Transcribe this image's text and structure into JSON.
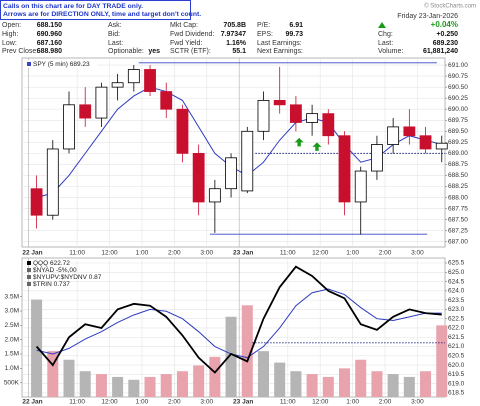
{
  "note": [
    "Calls on this chart are for DAY TRADE only.",
    "Arrows are for DIRECTION ONLY, time and target don't count."
  ],
  "copyright": "© StockCharts.com",
  "quote": [
    [
      {
        "label": "Open:",
        "value": "688.150"
      },
      {
        "label": "High:",
        "value": "690.960"
      },
      {
        "label": "Low:",
        "value": "687.160"
      },
      {
        "label": "Prev Close:",
        "value": "688.980"
      }
    ],
    [
      {
        "label": "Ask:"
      },
      {
        "label": "Bid:"
      },
      {
        "label": "Last:"
      },
      {
        "label": "Optionable:",
        "value": "yes"
      }
    ],
    [
      {
        "label": "Mkt Cap:",
        "value": "705.8B"
      },
      {
        "label": "Fwd Dividend:",
        "value": "7.97347"
      },
      {
        "label": "Fwd Yield:",
        "value": "1.16%"
      },
      {
        "label": "SCTR (ETF):",
        "value": "55.1"
      }
    ],
    [
      {
        "label": "P/E:",
        "value": "6.91"
      },
      {
        "label": "EPS:",
        "value": "99.73"
      },
      {
        "label": "Last Earnings:"
      },
      {
        "label": "Next Earnings:"
      }
    ]
  ],
  "summary": {
    "date": "Friday  23-Jan-2026",
    "change_pct": "+0.04%",
    "rows": [
      {
        "label": "Chg:",
        "value": "+0.250"
      },
      {
        "label": "Last:",
        "value": "689.230"
      },
      {
        "label": "Volume:",
        "value": "61,881,240"
      }
    ]
  },
  "chart_data": [
    {
      "type": "candlestick",
      "legend": "SPY (5 min) 689.23",
      "x": [
        0.25,
        0.75,
        1.25,
        1.75,
        2.25,
        2.75,
        3.25,
        3.75,
        4.25,
        4.75,
        5.25,
        5.75,
        6.25,
        6.75,
        7.25,
        7.75,
        8.25,
        8.75,
        9.25,
        9.75,
        10.25,
        10.75,
        11.25,
        11.75,
        12.25,
        12.75
      ],
      "open": [
        688.2,
        687.6,
        689.1,
        690.1,
        689.8,
        690.5,
        690.6,
        690.9,
        690.4,
        690.0,
        689.0,
        687.9,
        688.2,
        688.15,
        689.5,
        690.2,
        690.1,
        689.7,
        689.9,
        689.4,
        687.9,
        688.6,
        689.2,
        689.6,
        689.4,
        689.1
      ],
      "high": [
        688.5,
        689.3,
        690.4,
        690.5,
        690.6,
        690.8,
        691.0,
        691.0,
        690.6,
        690.1,
        689.2,
        688.4,
        689.0,
        689.6,
        690.4,
        690.96,
        690.3,
        690.1,
        690.0,
        689.5,
        688.7,
        689.4,
        689.8,
        690.0,
        689.6,
        689.4
      ],
      "low": [
        687.3,
        687.5,
        689.0,
        689.6,
        689.6,
        690.2,
        690.4,
        690.3,
        689.8,
        688.8,
        687.6,
        687.2,
        688.0,
        688.1,
        689.3,
        689.9,
        689.5,
        689.4,
        689.2,
        687.6,
        687.16,
        688.4,
        689.0,
        689.2,
        689.0,
        688.8
      ],
      "close": [
        687.6,
        689.1,
        690.1,
        689.8,
        690.5,
        690.6,
        690.9,
        690.4,
        690.0,
        689.0,
        687.9,
        688.2,
        688.9,
        689.5,
        690.2,
        690.1,
        689.7,
        689.9,
        689.4,
        687.9,
        688.6,
        689.2,
        689.6,
        689.4,
        689.1,
        689.23
      ],
      "colors": {
        "up": "#000000",
        "down": "#c8102e"
      },
      "ma": {
        "color": "#2e3bc0",
        "values": [
          688.0,
          688.1,
          688.5,
          689.0,
          689.5,
          690.0,
          690.3,
          690.5,
          690.4,
          690.2,
          689.6,
          689.0,
          688.7,
          688.5,
          688.8,
          689.3,
          689.7,
          689.8,
          689.7,
          689.2,
          688.8,
          688.9,
          689.2,
          689.4,
          689.3,
          689.2
        ]
      },
      "levels": [
        {
          "value": 691.05,
          "from": 3.4,
          "to": 12.6,
          "style": "solid",
          "color": "#3a44c8"
        },
        {
          "value": 687.17,
          "from": 5.6,
          "to": 12.3,
          "style": "solid",
          "color": "#3a44c8"
        },
        {
          "value": 689.0,
          "from": 7.0,
          "to": 12.85,
          "style": "dotted",
          "color": "#1a237e"
        }
      ],
      "arrows": {
        "color": "#1a9a1a",
        "x": [
          8.35,
          8.9
        ],
        "values": [
          689.35,
          689.25
        ]
      },
      "xlim": [
        -0.2,
        12.85
      ],
      "xticks": [
        {
          "value": 0,
          "label": "22 Jan"
        },
        {
          "value": 1.5,
          "label": "11:00"
        },
        {
          "value": 2.5,
          "label": "12:00"
        },
        {
          "value": 3.5,
          "label": "1:00"
        },
        {
          "value": 4.5,
          "label": "2:00"
        },
        {
          "value": 5.5,
          "label": "3:00"
        },
        {
          "value": 6.5,
          "label": "23 Jan"
        },
        {
          "value": 8,
          "label": "11:00"
        },
        {
          "value": 9,
          "label": "12:00"
        },
        {
          "value": 10,
          "label": "1:00"
        },
        {
          "value": 11,
          "label": "2:00"
        },
        {
          "value": 12,
          "label": "3:00"
        }
      ],
      "ylim": [
        686.88,
        691.16
      ],
      "yticks": [
        {
          "value": 691,
          "label": "691.00"
        },
        {
          "value": 690.75,
          "label": "690.75"
        },
        {
          "value": 690.5,
          "label": "690.50"
        },
        {
          "value": 690.25,
          "label": "690.25"
        },
        {
          "value": 690,
          "label": "690.00"
        },
        {
          "value": 689.75,
          "label": "689.75"
        },
        {
          "value": 689.5,
          "label": "689.50"
        },
        {
          "value": 689.25,
          "label": "689.25"
        },
        {
          "value": 689,
          "label": "689.00"
        },
        {
          "value": 688.75,
          "label": "688.75"
        },
        {
          "value": 688.5,
          "label": "688.50"
        },
        {
          "value": 688.25,
          "label": "688.25"
        },
        {
          "value": 688,
          "label": "688.00"
        },
        {
          "value": 687.75,
          "label": "687.75"
        },
        {
          "value": 687.5,
          "label": "687.50"
        },
        {
          "value": 687.25,
          "label": "687.25"
        },
        {
          "value": 687,
          "label": "687.00"
        }
      ],
      "grid": true
    },
    {
      "type": "line",
      "legend": [
        "$NYAD -5%,00",
        "$NYUPV:$NYDNV 0.87",
        "$TRIN 0.737"
      ],
      "x": [
        0.25,
        0.75,
        1.25,
        1.75,
        2.25,
        2.75,
        3.25,
        3.75,
        4.25,
        4.75,
        5.25,
        5.75,
        6.25,
        6.75,
        7.25,
        7.75,
        8.25,
        8.75,
        9.25,
        9.75,
        10.25,
        10.75,
        11.25,
        11.75,
        12.25,
        12.75
      ],
      "series": [
        {
          "name": "QQQ 622.72",
          "color": "#000000",
          "values": [
            621.0,
            620.0,
            621.5,
            622.2,
            622.0,
            623.0,
            623.3,
            623.2,
            622.6,
            621.6,
            620.4,
            619.6,
            620.6,
            620.2,
            622.5,
            624.2,
            625.3,
            624.8,
            624.0,
            623.6,
            622.2,
            621.9,
            622.6,
            623.0,
            622.8,
            622.72
          ]
        }
      ],
      "ma": {
        "color": "#2e3bc0",
        "values": [
          620.8,
          620.6,
          620.9,
          621.4,
          621.8,
          622.3,
          622.7,
          623.0,
          622.9,
          622.5,
          621.8,
          621.0,
          620.6,
          620.4,
          621.0,
          622.0,
          623.2,
          623.9,
          624.1,
          623.8,
          623.1,
          622.5,
          622.4,
          622.6,
          622.8,
          622.8
        ]
      },
      "volume": {
        "axis": "y2",
        "colors": {
          "up": "#b5b5b5",
          "down": "#e9a3ad"
        },
        "values": [
          3400000,
          1600000,
          1300000,
          900000,
          800000,
          700000,
          600000,
          700000,
          800000,
          900000,
          1100000,
          1400000,
          2800000,
          3200000,
          1600000,
          1200000,
          900000,
          800000,
          700000,
          1000000,
          1300000,
          900000,
          800000,
          700000,
          900000,
          2500000
        ]
      },
      "levels": [
        {
          "value": 621.2,
          "from": 6.9,
          "to": 12.85,
          "style": "dotted",
          "color": "#1a237e"
        }
      ],
      "xlim": [
        -0.2,
        12.85
      ],
      "xticks": [
        {
          "value": 0,
          "label": "22 Jan"
        },
        {
          "value": 1.5,
          "label": "11:00"
        },
        {
          "value": 2.5,
          "label": "12:00"
        },
        {
          "value": 3.5,
          "label": "1:00"
        },
        {
          "value": 4.5,
          "label": "2:00"
        },
        {
          "value": 5.5,
          "label": "3:00"
        },
        {
          "value": 6.5,
          "label": "23 Jan"
        },
        {
          "value": 8,
          "label": "11:00"
        },
        {
          "value": 9,
          "label": "12:00"
        },
        {
          "value": 10,
          "label": "1:00"
        },
        {
          "value": 11,
          "label": "2:00"
        },
        {
          "value": 12,
          "label": "3:00"
        }
      ],
      "ylim": [
        618.28,
        625.77
      ],
      "yticks": [
        625.5,
        {
          "value": 625,
          "label": "625.0"
        },
        624.5,
        {
          "value": 624,
          "label": "624.0"
        },
        623.5,
        {
          "value": 623,
          "label": "623.0"
        },
        622.5,
        {
          "value": 622,
          "label": "622.0"
        },
        621.5,
        {
          "value": 621,
          "label": "621.0"
        },
        620.5,
        {
          "value": 620,
          "label": "620.0"
        },
        619.5,
        {
          "value": 619,
          "label": "619.0"
        },
        618.5
      ],
      "y2lim": [
        0,
        4850000
      ],
      "y2ticks": [
        {
          "value": 500000,
          "label": "500K"
        },
        {
          "value": 1000000,
          "label": "1.0M"
        },
        {
          "value": 1500000,
          "label": "1.5M"
        },
        {
          "value": 2000000,
          "label": "2.0M"
        },
        {
          "value": 2500000,
          "label": "2.5M"
        },
        {
          "value": 3000000,
          "label": "3.0M"
        },
        {
          "value": 3500000,
          "label": "3.5M"
        }
      ],
      "grid": true
    }
  ]
}
